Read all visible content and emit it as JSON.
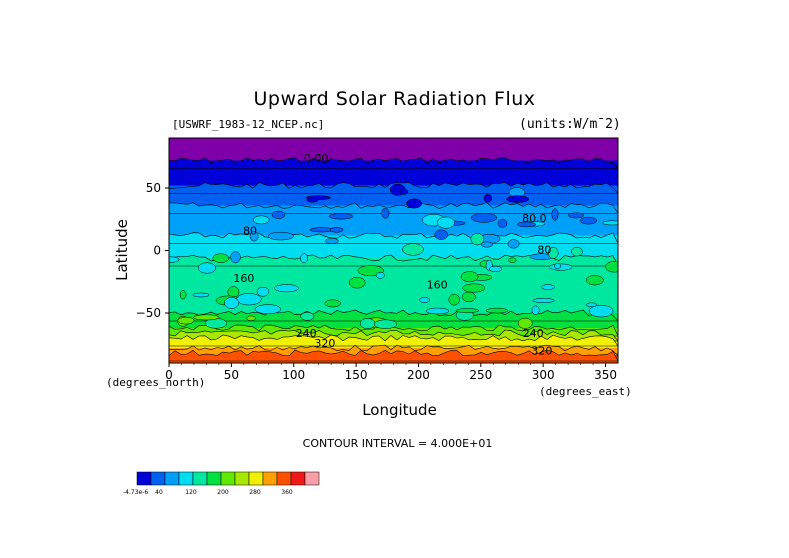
{
  "chart_data": {
    "type": "heatmap",
    "title": "Upward Solar Radiation Flux",
    "file_label": "[USWRF_1983-12_NCEP.nc]",
    "units": "(units:W/m^2)",
    "xlabel": "Longitude",
    "ylabel": "Latitude",
    "x_unit": "(degrees_east)",
    "y_unit": "(degrees_north)",
    "xlim": [
      0,
      360
    ],
    "ylim": [
      -90,
      90
    ],
    "x_ticks": [
      "0",
      "50",
      "100",
      "150",
      "200",
      "250",
      "300",
      "350"
    ],
    "x_tick_values": [
      0,
      50,
      100,
      150,
      200,
      250,
      300,
      350
    ],
    "y_ticks": [
      "50",
      "0",
      "−50"
    ],
    "y_tick_values": [
      50,
      0,
      -50
    ],
    "contour_interval": "CONTOUR INTERVAL = 4.000E+01",
    "contour_labels": [
      {
        "text": "0.00",
        "lon": 118,
        "lat": 74
      },
      {
        "text": "80.0",
        "lon": 293,
        "lat": 26
      },
      {
        "text": "80",
        "lon": 65,
        "lat": 16
      },
      {
        "text": "80",
        "lon": 301,
        "lat": 1
      },
      {
        "text": "160",
        "lon": 215,
        "lat": -27
      },
      {
        "text": "160",
        "lon": 60,
        "lat": -22
      },
      {
        "text": "240",
        "lon": 110,
        "lat": -66
      },
      {
        "text": "320",
        "lon": 125,
        "lat": -74
      },
      {
        "text": "240",
        "lon": 292,
        "lat": -66
      },
      {
        "text": "320",
        "lon": 299,
        "lat": -80
      }
    ],
    "latitude_bands": [
      {
        "lat_top": 90,
        "lat_bottom": 72,
        "level": 0
      },
      {
        "lat_top": 72,
        "lat_bottom": 52,
        "level": 1
      },
      {
        "lat_top": 52,
        "lat_bottom": 36,
        "level": 2
      },
      {
        "lat_top": 36,
        "lat_bottom": 12,
        "level": 3
      },
      {
        "lat_top": 12,
        "lat_bottom": -6,
        "level": 4
      },
      {
        "lat_top": -6,
        "lat_bottom": -50,
        "level": 5
      },
      {
        "lat_top": -50,
        "lat_bottom": -62,
        "level": 6
      },
      {
        "lat_top": -62,
        "lat_bottom": -66,
        "level": 7
      },
      {
        "lat_top": -66,
        "lat_bottom": -70,
        "level": 8
      },
      {
        "lat_top": -70,
        "lat_bottom": -78,
        "level": 9
      },
      {
        "lat_top": -78,
        "lat_bottom": -82,
        "level": 10
      },
      {
        "lat_top": -82,
        "lat_bottom": -90,
        "level": 11
      }
    ],
    "colorbar": {
      "colors": [
        "#7f00a8",
        "#0000d8",
        "#0060f0",
        "#00a0f8",
        "#00dcf0",
        "#00e8a0",
        "#00e040",
        "#60e800",
        "#a8e800",
        "#f0f000",
        "#ffa000",
        "#ff5000",
        "#f01818",
        "#f8a0a8"
      ],
      "labels": [
        "-4.73e-6",
        "40",
        "120",
        "200",
        "280",
        "360"
      ],
      "label_positions": [
        0,
        1,
        3,
        5,
        7,
        9
      ]
    }
  }
}
